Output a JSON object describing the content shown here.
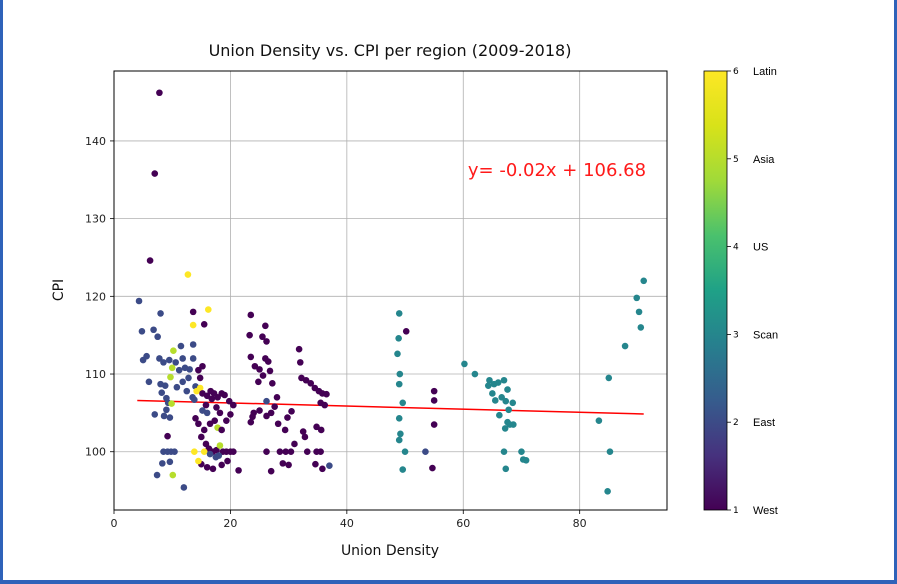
{
  "chart_data": {
    "type": "scatter",
    "title": "Union Density vs. CPI per region (2009-2018)",
    "xlabel": "Union Density",
    "ylabel": "CPI",
    "xlim": [
      0,
      95
    ],
    "ylim": [
      92.5,
      149
    ],
    "xticks": [
      0,
      20,
      40,
      60,
      80
    ],
    "yticks": [
      100,
      110,
      120,
      130,
      140
    ],
    "grid": true,
    "regression": {
      "slope": -0.02,
      "intercept": 106.68,
      "x_range": [
        4,
        91
      ],
      "color": "#ff0000",
      "label": "y= -0.02x + 106.68"
    },
    "colorbar": {
      "range": [
        1,
        6
      ],
      "ticks": [
        1,
        2,
        3,
        4,
        5,
        6
      ],
      "labels": [
        "West",
        "East",
        "Scan",
        "US",
        "Asia",
        "Latin"
      ],
      "colormap": "viridis"
    },
    "points": [
      [
        7.8,
        146.2,
        1
      ],
      [
        7.0,
        135.8,
        1
      ],
      [
        6.2,
        124.6,
        1
      ],
      [
        4.3,
        119.4,
        2
      ],
      [
        4.8,
        115.5,
        2
      ],
      [
        6.8,
        115.7,
        2
      ],
      [
        8.0,
        117.8,
        2
      ],
      [
        7.5,
        114.8,
        2
      ],
      [
        5.0,
        111.8,
        2
      ],
      [
        5.6,
        112.3,
        2
      ],
      [
        6.0,
        109.0,
        2
      ],
      [
        7.8,
        112.0,
        2
      ],
      [
        8.5,
        111.5,
        2
      ],
      [
        9.5,
        111.8,
        2
      ],
      [
        10.6,
        111.5,
        2
      ],
      [
        10.2,
        113.0,
        5
      ],
      [
        10.0,
        110.8,
        5
      ],
      [
        9.7,
        109.6,
        5
      ],
      [
        11.5,
        113.6,
        2
      ],
      [
        11.8,
        112.0,
        2
      ],
      [
        11.2,
        110.5,
        2
      ],
      [
        12.2,
        110.8,
        2
      ],
      [
        12.8,
        109.5,
        2
      ],
      [
        13.0,
        110.6,
        2
      ],
      [
        10.8,
        108.3,
        2
      ],
      [
        11.8,
        109.0,
        2
      ],
      [
        12.5,
        107.8,
        2
      ],
      [
        13.5,
        107.0,
        2
      ],
      [
        14.0,
        108.4,
        2
      ],
      [
        8.0,
        108.7,
        2
      ],
      [
        8.8,
        108.5,
        2
      ],
      [
        8.2,
        107.6,
        2
      ],
      [
        9.0,
        106.9,
        2
      ],
      [
        9.3,
        106.3,
        2
      ],
      [
        9.0,
        105.4,
        2
      ],
      [
        8.6,
        104.6,
        2
      ],
      [
        9.6,
        104.4,
        2
      ],
      [
        9.2,
        102.0,
        1
      ],
      [
        7.0,
        104.8,
        2
      ],
      [
        8.5,
        100.0,
        2
      ],
      [
        9.2,
        100.0,
        2
      ],
      [
        9.8,
        100.0,
        2
      ],
      [
        10.4,
        100.0,
        2
      ],
      [
        8.3,
        98.5,
        2
      ],
      [
        9.6,
        98.7,
        2
      ],
      [
        7.4,
        97.0,
        2
      ],
      [
        10.1,
        97.0,
        5
      ],
      [
        9.9,
        106.2,
        5
      ],
      [
        12.0,
        95.4,
        2
      ],
      [
        12.7,
        122.8,
        6
      ],
      [
        13.6,
        116.3,
        6
      ],
      [
        16.2,
        118.3,
        6
      ],
      [
        13.6,
        118.0,
        1
      ],
      [
        15.5,
        116.4,
        1
      ],
      [
        13.6,
        113.8,
        2
      ],
      [
        13.6,
        112.0,
        2
      ],
      [
        14.5,
        110.5,
        1
      ],
      [
        15.2,
        111.0,
        1
      ],
      [
        14.8,
        109.5,
        1
      ],
      [
        14.2,
        107.8,
        6
      ],
      [
        14.8,
        108.2,
        6
      ],
      [
        13.8,
        106.7,
        2
      ],
      [
        15.2,
        107.5,
        1
      ],
      [
        16.0,
        107.2,
        1
      ],
      [
        16.8,
        106.8,
        1
      ],
      [
        15.8,
        106.0,
        1
      ],
      [
        16.6,
        107.8,
        1
      ],
      [
        17.2,
        107.5,
        1
      ],
      [
        17.8,
        107.0,
        1
      ],
      [
        18.5,
        107.5,
        1
      ],
      [
        19.0,
        107.3,
        1
      ],
      [
        17.6,
        105.7,
        1
      ],
      [
        18.2,
        105.0,
        1
      ],
      [
        16.0,
        105.0,
        2
      ],
      [
        15.2,
        105.3,
        2
      ],
      [
        14.0,
        104.3,
        1
      ],
      [
        14.5,
        103.6,
        1
      ],
      [
        15.5,
        102.8,
        1
      ],
      [
        16.5,
        103.6,
        1
      ],
      [
        17.3,
        104.0,
        1
      ],
      [
        17.8,
        103.1,
        5
      ],
      [
        18.5,
        102.8,
        1
      ],
      [
        15.0,
        101.9,
        1
      ],
      [
        15.8,
        101.0,
        1
      ],
      [
        16.3,
        100.4,
        1
      ],
      [
        17.0,
        100.0,
        1
      ],
      [
        17.6,
        100.2,
        1
      ],
      [
        18.2,
        100.8,
        5
      ],
      [
        18.7,
        100.0,
        1
      ],
      [
        19.3,
        100.0,
        1
      ],
      [
        20.0,
        100.0,
        1
      ],
      [
        20.5,
        100.0,
        1
      ],
      [
        13.8,
        100.0,
        6
      ],
      [
        15.5,
        100.0,
        6
      ],
      [
        16.5,
        99.7,
        2
      ],
      [
        17.5,
        99.3,
        2
      ],
      [
        18.0,
        99.5,
        2
      ],
      [
        15.0,
        98.4,
        1
      ],
      [
        16.0,
        98.0,
        1
      ],
      [
        17.0,
        97.8,
        1
      ],
      [
        18.5,
        98.3,
        1
      ],
      [
        19.5,
        98.8,
        1
      ],
      [
        14.5,
        98.8,
        6
      ],
      [
        21.4,
        97.6,
        1
      ],
      [
        19.3,
        104.0,
        1
      ],
      [
        20.0,
        104.8,
        1
      ],
      [
        20.5,
        106.0,
        1
      ],
      [
        19.8,
        106.5,
        1
      ],
      [
        23.5,
        117.6,
        1
      ],
      [
        26.0,
        116.2,
        1
      ],
      [
        23.3,
        115.0,
        1
      ],
      [
        25.5,
        114.8,
        1
      ],
      [
        26.2,
        114.2,
        1
      ],
      [
        23.5,
        112.2,
        1
      ],
      [
        26.0,
        112.0,
        1
      ],
      [
        26.5,
        111.6,
        1
      ],
      [
        24.2,
        111.0,
        1
      ],
      [
        25.0,
        110.6,
        1
      ],
      [
        26.8,
        110.4,
        1
      ],
      [
        25.6,
        109.8,
        1
      ],
      [
        24.8,
        109.0,
        1
      ],
      [
        27.2,
        108.8,
        1
      ],
      [
        28.0,
        107.0,
        1
      ],
      [
        27.6,
        105.8,
        1
      ],
      [
        27.0,
        105.0,
        1
      ],
      [
        26.2,
        106.5,
        2
      ],
      [
        25.0,
        105.3,
        1
      ],
      [
        24.0,
        105.0,
        1
      ],
      [
        23.8,
        104.5,
        1
      ],
      [
        26.2,
        104.6,
        1
      ],
      [
        23.5,
        103.8,
        1
      ],
      [
        28.2,
        103.6,
        1
      ],
      [
        29.8,
        104.4,
        1
      ],
      [
        30.5,
        105.2,
        1
      ],
      [
        29.4,
        102.8,
        1
      ],
      [
        31.0,
        101.0,
        1
      ],
      [
        29.5,
        100.0,
        1
      ],
      [
        30.4,
        100.0,
        1
      ],
      [
        28.5,
        100.0,
        1
      ],
      [
        26.2,
        100.0,
        1
      ],
      [
        29.0,
        98.5,
        1
      ],
      [
        30.0,
        98.3,
        1
      ],
      [
        27.0,
        97.5,
        1
      ],
      [
        31.8,
        113.2,
        1
      ],
      [
        32.0,
        111.5,
        1
      ],
      [
        32.2,
        109.5,
        1
      ],
      [
        33.0,
        109.2,
        1
      ],
      [
        33.8,
        108.8,
        1
      ],
      [
        34.5,
        108.2,
        1
      ],
      [
        35.2,
        107.8,
        1
      ],
      [
        35.8,
        107.5,
        1
      ],
      [
        36.5,
        107.4,
        1
      ],
      [
        35.5,
        106.3,
        1
      ],
      [
        36.2,
        106.0,
        1
      ],
      [
        32.5,
        102.6,
        1
      ],
      [
        32.8,
        101.9,
        1
      ],
      [
        34.8,
        103.2,
        1
      ],
      [
        35.6,
        102.8,
        1
      ],
      [
        33.2,
        100.0,
        1
      ],
      [
        34.8,
        100.0,
        1
      ],
      [
        35.5,
        100.0,
        1
      ],
      [
        34.6,
        98.4,
        1
      ],
      [
        35.8,
        97.8,
        1
      ],
      [
        37.0,
        98.2,
        2
      ],
      [
        49.0,
        117.8,
        3
      ],
      [
        48.9,
        114.6,
        3
      ],
      [
        48.7,
        112.6,
        3
      ],
      [
        50.2,
        115.5,
        1
      ],
      [
        49.1,
        110.0,
        3
      ],
      [
        49.0,
        108.7,
        3
      ],
      [
        49.6,
        106.3,
        3
      ],
      [
        49.0,
        104.3,
        3
      ],
      [
        49.2,
        102.3,
        3
      ],
      [
        49.0,
        101.5,
        3
      ],
      [
        50.0,
        100.0,
        3
      ],
      [
        49.6,
        97.7,
        3
      ],
      [
        53.5,
        100.0,
        2
      ],
      [
        55.0,
        107.8,
        1
      ],
      [
        55.0,
        106.6,
        1
      ],
      [
        55.0,
        103.5,
        1
      ],
      [
        54.7,
        97.9,
        1
      ],
      [
        60.2,
        111.3,
        3
      ],
      [
        62.0,
        110.0,
        3
      ],
      [
        64.5,
        109.2,
        3
      ],
      [
        64.3,
        108.5,
        3
      ],
      [
        65.3,
        108.7,
        3
      ],
      [
        66.0,
        108.9,
        3
      ],
      [
        67.0,
        109.2,
        3
      ],
      [
        67.6,
        108.0,
        3
      ],
      [
        65.0,
        107.5,
        3
      ],
      [
        65.5,
        106.6,
        3
      ],
      [
        66.6,
        107.0,
        3
      ],
      [
        67.3,
        106.5,
        3
      ],
      [
        68.5,
        106.3,
        3
      ],
      [
        67.8,
        105.4,
        3
      ],
      [
        66.2,
        104.7,
        3
      ],
      [
        67.6,
        103.8,
        3
      ],
      [
        68.0,
        103.5,
        3
      ],
      [
        67.2,
        103.0,
        3
      ],
      [
        68.6,
        103.5,
        3
      ],
      [
        70.0,
        100.0,
        3
      ],
      [
        67.0,
        100.0,
        3
      ],
      [
        70.3,
        99.0,
        3
      ],
      [
        70.8,
        98.9,
        3
      ],
      [
        67.3,
        97.8,
        3
      ],
      [
        83.3,
        104.0,
        3
      ],
      [
        85.0,
        109.5,
        3
      ],
      [
        85.2,
        100.0,
        3
      ],
      [
        84.8,
        94.9,
        3
      ],
      [
        87.8,
        113.6,
        3
      ],
      [
        89.8,
        119.8,
        3
      ],
      [
        90.2,
        118.0,
        3
      ],
      [
        90.5,
        116.0,
        3
      ],
      [
        91.0,
        122.0,
        3
      ]
    ]
  }
}
